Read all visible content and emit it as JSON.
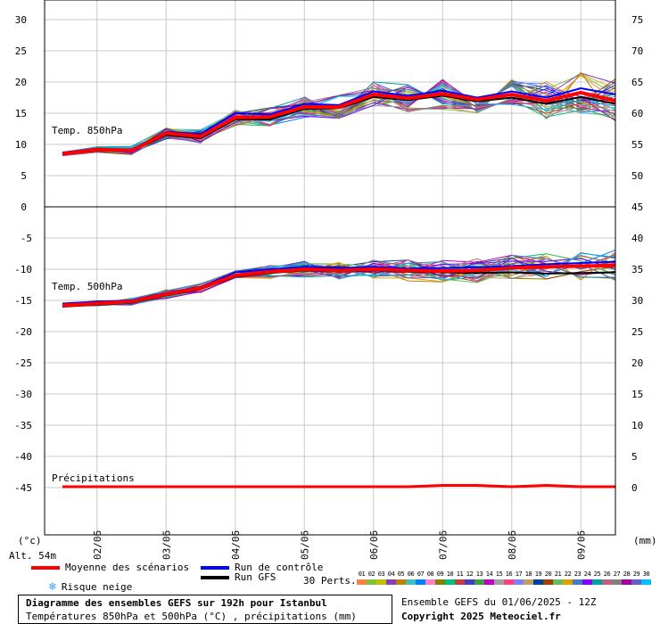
{
  "chart_data": {
    "type": "line",
    "x_dates": [
      "02/06",
      "03/06",
      "04/06",
      "05/06",
      "06/06",
      "07/06",
      "08/06",
      "09/06"
    ],
    "panels": [
      {
        "label": "Temp. 850hPa",
        "y_left": [
          30,
          25,
          20,
          15,
          10,
          5,
          0
        ],
        "y_right": [
          75,
          70,
          65,
          60,
          55,
          50
        ],
        "ylim": [
          0,
          30
        ]
      },
      {
        "label": "Temp. 500hPa",
        "y_left": [
          -5,
          -10,
          -15,
          -20,
          -25,
          -30,
          -35,
          -40,
          -45
        ],
        "y_right": [
          45,
          40,
          35,
          30,
          25,
          20,
          15,
          10,
          5,
          0
        ],
        "ylim": [
          -50,
          0
        ]
      },
      {
        "label": "Précipitations"
      }
    ],
    "left_unit": "(°c)",
    "right_unit": "(mm)",
    "x": [
      0,
      12,
      24,
      36,
      48,
      60,
      72,
      84,
      96,
      108,
      120,
      132,
      144,
      156,
      168,
      180,
      192
    ],
    "series": [
      {
        "name": "Moyenne des scénarios",
        "color": "#ff0000",
        "t850": [
          8.5,
          9.2,
          9.0,
          11.8,
          11.3,
          14.3,
          14.4,
          16.0,
          16.0,
          18.0,
          17.4,
          18.1,
          17.2,
          18.0,
          17.0,
          18.3,
          17.0
        ],
        "t500": [
          -15.8,
          -15.5,
          -15.2,
          -14.0,
          -13.0,
          -11.0,
          -10.4,
          -10.0,
          -10.2,
          -10.0,
          -10.2,
          -10.3,
          -10.2,
          -9.8,
          -9.6,
          -9.5,
          -9.4
        ],
        "precip": [
          0,
          0,
          0,
          0,
          0,
          0,
          0,
          0,
          0,
          0,
          0,
          0.1,
          0.1,
          0,
          0.1,
          0,
          0
        ]
      },
      {
        "name": "Run de contrôle",
        "color": "#0000ff",
        "t850": [
          8.7,
          9.3,
          9.2,
          12.0,
          11.7,
          15.0,
          14.8,
          16.5,
          16.3,
          18.5,
          17.8,
          18.6,
          17.5,
          18.5,
          17.5,
          19.0,
          18.0
        ],
        "t500": [
          -15.5,
          -15.2,
          -15.0,
          -13.8,
          -12.8,
          -10.5,
          -10.0,
          -9.6,
          -9.8,
          -9.6,
          -9.9,
          -9.8,
          -9.7,
          -9.5,
          -9.2,
          -9.0,
          -8.8
        ]
      },
      {
        "name": "Run GFS",
        "color": "#000000",
        "t850": [
          8.4,
          9.0,
          8.9,
          11.5,
          11.0,
          14.0,
          14.0,
          15.7,
          15.8,
          17.6,
          17.1,
          17.8,
          16.9,
          17.5,
          16.5,
          17.6,
          16.5
        ],
        "t500": [
          -16.0,
          -15.7,
          -15.4,
          -14.2,
          -13.2,
          -11.2,
          -10.6,
          -10.2,
          -10.4,
          -10.2,
          -10.4,
          -10.5,
          -10.6,
          -10.5,
          -10.7,
          -10.6,
          -10.5
        ]
      }
    ]
  },
  "legend": {
    "mean": "Moyenne des scénarios",
    "control": "Run de contrôle",
    "gfs": "Run GFS",
    "snow": "Risque neige",
    "perts": "30 Perts."
  },
  "perturbations": [
    "01",
    "02",
    "03",
    "04",
    "05",
    "06",
    "07",
    "08",
    "09",
    "10",
    "11",
    "12",
    "13",
    "14",
    "15",
    "16",
    "17",
    "18",
    "19",
    "20",
    "21",
    "22",
    "23",
    "24",
    "25",
    "26",
    "27",
    "28",
    "29",
    "30"
  ],
  "perturbation_colors": [
    "#ff8040",
    "#80c040",
    "#c0c000",
    "#8040c0",
    "#c08000",
    "#40c0c0",
    "#0080ff",
    "#ff80c0",
    "#808000",
    "#00c080",
    "#c04040",
    "#4040c0",
    "#40a040",
    "#c000c0",
    "#a0a0a0",
    "#ff4080",
    "#8080ff",
    "#c0a060",
    "#0040a0",
    "#a04000",
    "#60c060",
    "#e0a000",
    "#4080c0",
    "#8000ff",
    "#00a0a0",
    "#c06080",
    "#808080",
    "#a000a0",
    "#6060c0",
    "#00c0ff"
  ],
  "altitude": "Alt. 54m",
  "footer": {
    "title": "Diagramme des ensembles GEFS sur 192h pour Istanbul",
    "subtitle": "Températures 850hPa et 500hPa (°C) , précipitations (mm)",
    "run": "Ensemble GEFS du 01/06/2025 - 12Z",
    "copyright": "Copyright 2025 Meteociel.fr"
  }
}
